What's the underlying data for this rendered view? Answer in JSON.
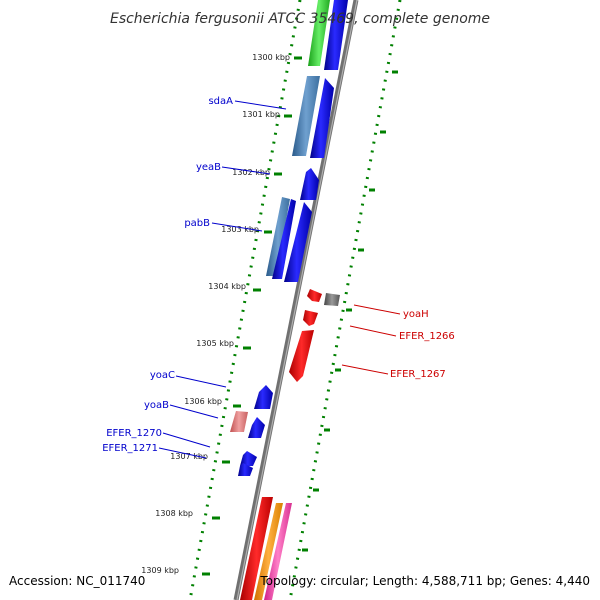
{
  "title": "Escherichia fergusonii ATCC 35469, complete genome",
  "footer": {
    "accession": "Accession: NC_011740",
    "summary": "Topology: circular; Length: 4,588,711 bp; Genes: 4,440"
  },
  "kbp_labels": [
    "1300 kbp",
    "1301 kbp",
    "1302 kbp",
    "1303 kbp",
    "1304 kbp",
    "1305 kbp",
    "1306 kbp",
    "1307 kbp",
    "1308 kbp",
    "1309 kbp"
  ],
  "forward_genes": [
    "sdaA",
    "yeaB",
    "pabB",
    "yoaC",
    "yoaB",
    "EFER_1270",
    "EFER_1271"
  ],
  "reverse_genes": [
    "yoaH",
    "EFER_1266",
    "EFER_1267"
  ],
  "colors": {
    "forward": "#0000cc",
    "reverse": "#cc0000",
    "ticks": "#008000",
    "backbone": "#808080"
  }
}
